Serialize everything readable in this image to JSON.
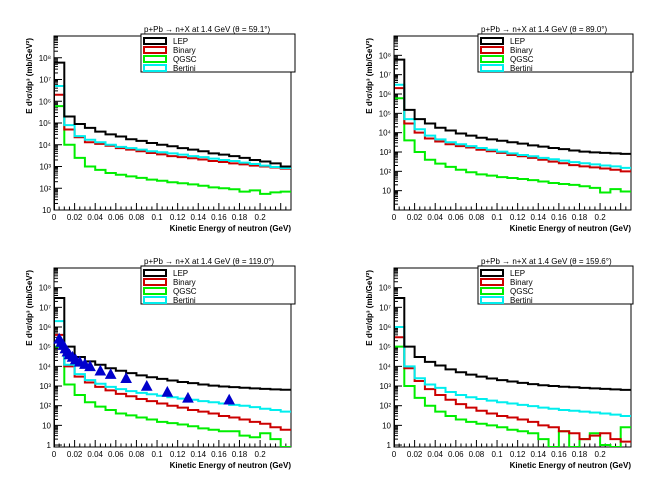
{
  "page": {
    "background": "#ffffff"
  },
  "styles": {
    "LEP": "#000000",
    "Binary": "#cc0000",
    "QGSC": "#00ee00",
    "Bertini": "#00eeee",
    "data_marker": "#0000cc"
  },
  "chart_data": [
    {
      "type": "line",
      "title": "p+Pb → n+X at 1.4 GeV (θ = 59.1°)",
      "xlabel": "Kinetic Energy of neutron (GeV)",
      "ylabel": "E d³σ/dp³ (mb/GeV²)",
      "xlim": [
        0,
        0.23
      ],
      "ylog": true,
      "ylim": [
        10,
        1000000000.0
      ],
      "x_ticks": [
        "0",
        "0.02",
        "0.04",
        "0.06",
        "0.08",
        "0.1",
        "0.12",
        "0.14",
        "0.16",
        "0.18",
        "0.2"
      ],
      "y_tick_exponents": [
        1,
        2,
        3,
        4,
        5,
        6,
        7,
        8
      ],
      "legend_position": "top-right",
      "bin_width": 0.01,
      "series": [
        {
          "name": "LEP",
          "values": [
            60000000.0,
            200000.0,
            90000.0,
            60000.0,
            40000.0,
            30000.0,
            24000.0,
            18000.0,
            15000.0,
            12000.0,
            10000.0,
            8500.0,
            7000.0,
            6000.0,
            5000.0,
            4000.0,
            3500.0,
            3000.0,
            2500.0,
            2000.0,
            1700.0,
            1400.0,
            1000.0
          ]
        },
        {
          "name": "Binary",
          "values": [
            2000000.0,
            50000.0,
            22000.0,
            13000.0,
            11000.0,
            9000.0,
            7000.0,
            6000.0,
            5000.0,
            4200.0,
            3600.0,
            3000.0,
            2700.0,
            2400.0,
            2100.0,
            1800.0,
            1600.0,
            1400.0,
            1250.0,
            1100.0,
            1000.0,
            900,
            800
          ]
        },
        {
          "name": "QGSC",
          "values": [
            600000.0,
            10000.0,
            2500.0,
            1000.0,
            700,
            500,
            420,
            350,
            300,
            250,
            220,
            190,
            170,
            150,
            130,
            110,
            100,
            90,
            70,
            80,
            55,
            65,
            70
          ]
        },
        {
          "name": "Bertini",
          "values": [
            5000000.0,
            80000.0,
            25000.0,
            17000.0,
            13000.0,
            10000.0,
            8000.0,
            7000.0,
            6000.0,
            5000.0,
            4500.0,
            4000.0,
            3500.0,
            3000.0,
            2700.0,
            2300.0,
            2000.0,
            1800.0,
            1500.0,
            1300.0,
            1100.0,
            950,
            850
          ]
        }
      ]
    },
    {
      "type": "line",
      "title": "p+Pb → n+X at 1.4 GeV (θ = 89.0°)",
      "xlabel": "Kinetic Energy of neutron (GeV)",
      "ylabel": "E d³σ/dp³ (mb/GeV²)",
      "xlim": [
        0,
        0.23
      ],
      "ylog": true,
      "ylim": [
        1,
        1000000000.0
      ],
      "x_ticks": [
        "0",
        "0.02",
        "0.04",
        "0.06",
        "0.08",
        "0.1",
        "0.12",
        "0.14",
        "0.16",
        "0.18",
        "0.2"
      ],
      "y_tick_exponents": [
        1,
        2,
        3,
        4,
        5,
        6,
        7,
        8
      ],
      "legend_position": "top-right",
      "bin_width": 0.01,
      "series": [
        {
          "name": "LEP",
          "values": [
            60000000.0,
            150000.0,
            50000.0,
            30000.0,
            18000.0,
            13000.0,
            9000.0,
            7000.0,
            5500.0,
            4500.0,
            3800.0,
            3200.0,
            2700.0,
            2200.0,
            1900.0,
            1600.0,
            1400.0,
            1200.0,
            1050.0,
            950,
            900,
            850,
            800
          ]
        },
        {
          "name": "Binary",
          "values": [
            2000000.0,
            30000.0,
            10000.0,
            5000.0,
            3500.0,
            2500.0,
            2000.0,
            1700.0,
            1300.0,
            1100.0,
            900,
            700,
            600,
            500,
            400,
            320,
            260,
            210,
            180,
            160,
            140,
            120,
            100
          ]
        },
        {
          "name": "QGSC",
          "values": [
            600000.0,
            4000.0,
            1000.0,
            400,
            250,
            170,
            120,
            90,
            70,
            60,
            50,
            45,
            40,
            35,
            30,
            25,
            22,
            20,
            17,
            14,
            8,
            12,
            9
          ]
        },
        {
          "name": "Bertini",
          "values": [
            3000000.0,
            50000.0,
            15000.0,
            7000.0,
            4500.0,
            3200.0,
            2500.0,
            2000.0,
            1600.0,
            1300.0,
            1050.0,
            850,
            700,
            600,
            500,
            420,
            360,
            300,
            260,
            230,
            200,
            180,
            150
          ]
        }
      ]
    },
    {
      "type": "line",
      "title": "p+Pb → n+X at 1.4 GeV (θ = 119.0°)",
      "xlabel": "Kinetic Energy of neutron (GeV)",
      "ylabel": "E d³σ/dp³ (mb/GeV²)",
      "xlim": [
        0,
        0.23
      ],
      "ylog": true,
      "ylim": [
        1,
        1000000000.0
      ],
      "x_ticks": [
        "0",
        "0.02",
        "0.04",
        "0.06",
        "0.08",
        "0.1",
        "0.12",
        "0.14",
        "0.16",
        "0.18",
        "0.2"
      ],
      "y_tick_exponents": [
        0,
        1,
        2,
        3,
        4,
        5,
        6,
        7,
        8
      ],
      "legend_position": "top-right",
      "bin_width": 0.01,
      "series": [
        {
          "name": "LEP",
          "values": [
            30000000.0,
            100000.0,
            30000.0,
            18000.0,
            12000.0,
            8000.0,
            6000.0,
            4500.0,
            3500.0,
            2800.0,
            2300.0,
            1900.0,
            1600.0,
            1400.0,
            1200.0,
            1050.0,
            950,
            880,
            820,
            760,
            720,
            680,
            650
          ]
        },
        {
          "name": "Binary",
          "values": [
            400000.0,
            10000.0,
            3000.0,
            1500.0,
            900,
            600,
            400,
            300,
            220,
            170,
            130,
            100,
            80,
            60,
            50,
            40,
            30,
            25,
            20,
            15,
            12,
            8,
            6
          ]
        },
        {
          "name": "QGSC",
          "values": [
            100000.0,
            1200.0,
            350,
            150,
            90,
            60,
            40,
            32,
            25,
            20,
            15,
            13,
            11,
            9,
            7,
            6,
            5,
            5,
            3,
            2.5,
            4,
            2,
            0.5
          ]
        },
        {
          "name": "Bertini",
          "values": [
            2000000.0,
            12000.0,
            4000.0,
            2000.0,
            1300.0,
            900,
            700,
            550,
            450,
            380,
            320,
            270,
            230,
            200,
            170,
            150,
            130,
            110,
            100,
            85,
            70,
            60,
            50
          ]
        },
        {
          "name": "Data",
          "marker": "triangle",
          "x": [
            0.005,
            0.007,
            0.009,
            0.011,
            0.013,
            0.015,
            0.018,
            0.021,
            0.025,
            0.03,
            0.035,
            0.045,
            0.055,
            0.07,
            0.09,
            0.11,
            0.13,
            0.17
          ],
          "y": [
            250000.0,
            170000.0,
            120000.0,
            80000.0,
            55000.0,
            40000.0,
            30000.0,
            22000.0,
            17000.0,
            13000.0,
            10000.0,
            6000.0,
            4000.0,
            2500.0,
            1000.0,
            500,
            250,
            200
          ]
        }
      ]
    },
    {
      "type": "line",
      "title": "p+Pb → n+X at 1.4 GeV (θ = 159.6°)",
      "xlabel": "Kinetic Energy of neutron (GeV)",
      "ylabel": "E d³σ/dp³ (mb/GeV²)",
      "xlim": [
        0,
        0.23
      ],
      "ylog": true,
      "ylim": [
        1,
        1000000000.0
      ],
      "x_ticks": [
        "0",
        "0.02",
        "0.04",
        "0.06",
        "0.08",
        "0.1",
        "0.12",
        "0.14",
        "0.16",
        "0.18",
        "0.2"
      ],
      "y_tick_exponents": [
        0,
        1,
        2,
        3,
        4,
        5,
        6,
        7,
        8
      ],
      "legend_position": "top-right",
      "bin_width": 0.01,
      "series": [
        {
          "name": "LEP",
          "values": [
            30000000.0,
            100000.0,
            30000.0,
            17000.0,
            11000.0,
            7000.0,
            5000.0,
            3800.0,
            3000.0,
            2400.0,
            2000.0,
            1700.0,
            1450.0,
            1250.0,
            1100.0,
            1000.0,
            920,
            860,
            800,
            760,
            720,
            680,
            640
          ]
        },
        {
          "name": "Binary",
          "values": [
            300000.0,
            8000.0,
            1800.0,
            700,
            350,
            200,
            120,
            80,
            55,
            40,
            30,
            25,
            20,
            15,
            10,
            8,
            5,
            4,
            2,
            3,
            4,
            2,
            1.5
          ]
        },
        {
          "name": "QGSC",
          "values": [
            100000.0,
            1000.0,
            250,
            100,
            50,
            30,
            20,
            15,
            12,
            10,
            8,
            6,
            5,
            4,
            2,
            0.6,
            5,
            0.6,
            2,
            4,
            1,
            0.6,
            8
          ]
        },
        {
          "name": "Bertini",
          "values": [
            1000000.0,
            10000.0,
            2500.0,
            1200.0,
            800,
            500,
            350,
            270,
            220,
            180,
            150,
            130,
            110,
            95,
            80,
            70,
            60,
            55,
            50,
            45,
            40,
            35,
            30
          ]
        }
      ]
    }
  ]
}
